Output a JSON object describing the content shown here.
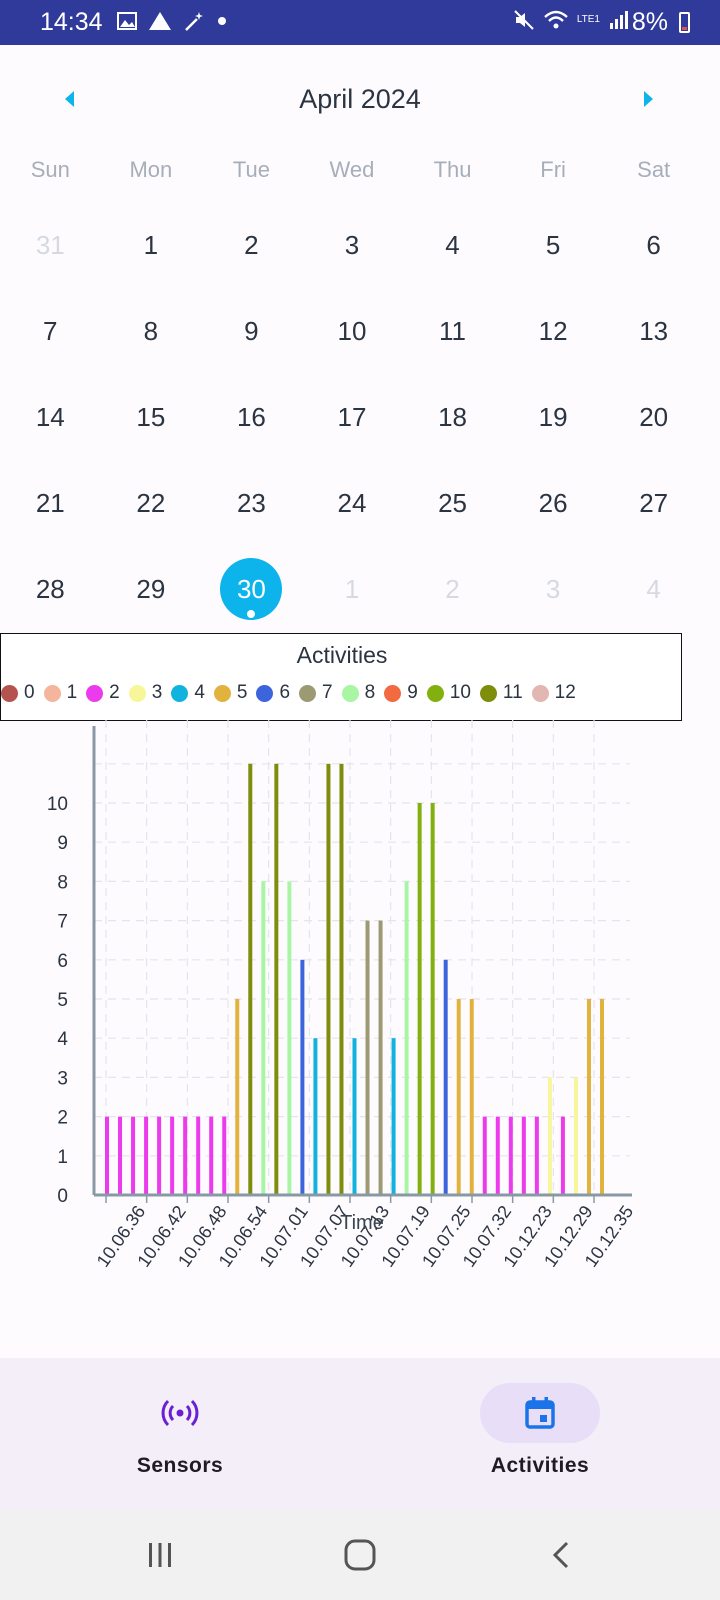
{
  "status_bar": {
    "time": "14:34",
    "battery": "8%",
    "network": "LTE1"
  },
  "calendar": {
    "month_title": "April 2024",
    "weekdays": [
      "Sun",
      "Mon",
      "Tue",
      "Wed",
      "Thu",
      "Fri",
      "Sat"
    ],
    "weeks": [
      [
        {
          "d": "31",
          "muted": true
        },
        {
          "d": "1"
        },
        {
          "d": "2"
        },
        {
          "d": "3"
        },
        {
          "d": "4"
        },
        {
          "d": "5"
        },
        {
          "d": "6"
        }
      ],
      [
        {
          "d": "7"
        },
        {
          "d": "8"
        },
        {
          "d": "9"
        },
        {
          "d": "10"
        },
        {
          "d": "11"
        },
        {
          "d": "12"
        },
        {
          "d": "13"
        }
      ],
      [
        {
          "d": "14"
        },
        {
          "d": "15"
        },
        {
          "d": "16"
        },
        {
          "d": "17"
        },
        {
          "d": "18"
        },
        {
          "d": "19"
        },
        {
          "d": "20"
        }
      ],
      [
        {
          "d": "21"
        },
        {
          "d": "22"
        },
        {
          "d": "23"
        },
        {
          "d": "24"
        },
        {
          "d": "25"
        },
        {
          "d": "26"
        },
        {
          "d": "27"
        }
      ],
      [
        {
          "d": "28"
        },
        {
          "d": "29"
        },
        {
          "d": "30",
          "selected": true
        },
        {
          "d": "1",
          "muted": true
        },
        {
          "d": "2",
          "muted": true
        },
        {
          "d": "3",
          "muted": true
        },
        {
          "d": "4",
          "muted": true
        }
      ]
    ],
    "accent_color": "#0db4ec"
  },
  "legend": {
    "title": "Activities",
    "items": [
      {
        "label": "0",
        "color": "#b5534f"
      },
      {
        "label": "1",
        "color": "#f5b59c"
      },
      {
        "label": "2",
        "color": "#ec3bec"
      },
      {
        "label": "3",
        "color": "#f7f79a"
      },
      {
        "label": "4",
        "color": "#11b2de"
      },
      {
        "label": "5",
        "color": "#e2b23e"
      },
      {
        "label": "6",
        "color": "#3c64dc"
      },
      {
        "label": "7",
        "color": "#9b9a72"
      },
      {
        "label": "8",
        "color": "#a8f5a4"
      },
      {
        "label": "9",
        "color": "#f26a3f"
      },
      {
        "label": "10",
        "color": "#82b10f"
      },
      {
        "label": "11",
        "color": "#7e8e0c"
      },
      {
        "label": "12",
        "color": "#e2b6b1"
      }
    ]
  },
  "chart_data": {
    "type": "bar",
    "xlabel": "Time",
    "ylabel": "",
    "ylim": [
      0,
      11
    ],
    "yticks": [
      0,
      1,
      2,
      3,
      4,
      5,
      6,
      7,
      8,
      9,
      10
    ],
    "grid": true,
    "xtick_labels": [
      "10.06.36",
      "10.06.42",
      "10.06.48",
      "10.06.54",
      "10.07.01",
      "10.07.07",
      "10.07.13",
      "10.07.19",
      "10.07.25",
      "10.07.32",
      "10.12.23",
      "10.12.29",
      "10.12.35"
    ],
    "bars": [
      {
        "v": 2,
        "activity": "2"
      },
      {
        "v": 2,
        "activity": "2"
      },
      {
        "v": 2,
        "activity": "2"
      },
      {
        "v": 2,
        "activity": "2"
      },
      {
        "v": 2,
        "activity": "2"
      },
      {
        "v": 2,
        "activity": "2"
      },
      {
        "v": 2,
        "activity": "2"
      },
      {
        "v": 2,
        "activity": "2"
      },
      {
        "v": 2,
        "activity": "2"
      },
      {
        "v": 2,
        "activity": "2"
      },
      {
        "v": 5,
        "activity": "5"
      },
      {
        "v": 11,
        "activity": "11"
      },
      {
        "v": 8,
        "activity": "8"
      },
      {
        "v": 11,
        "activity": "11"
      },
      {
        "v": 8,
        "activity": "8"
      },
      {
        "v": 6,
        "activity": "6"
      },
      {
        "v": 4,
        "activity": "4"
      },
      {
        "v": 11,
        "activity": "11"
      },
      {
        "v": 11,
        "activity": "11"
      },
      {
        "v": 4,
        "activity": "4"
      },
      {
        "v": 7,
        "activity": "7"
      },
      {
        "v": 7,
        "activity": "7"
      },
      {
        "v": 4,
        "activity": "4"
      },
      {
        "v": 8,
        "activity": "8"
      },
      {
        "v": 10,
        "activity": "10"
      },
      {
        "v": 10,
        "activity": "10"
      },
      {
        "v": 6,
        "activity": "6"
      },
      {
        "v": 5,
        "activity": "5"
      },
      {
        "v": 5,
        "activity": "5"
      },
      {
        "v": 2,
        "activity": "2"
      },
      {
        "v": 2,
        "activity": "2"
      },
      {
        "v": 2,
        "activity": "2"
      },
      {
        "v": 2,
        "activity": "2"
      },
      {
        "v": 2,
        "activity": "2"
      },
      {
        "v": 3,
        "activity": "3"
      },
      {
        "v": 2,
        "activity": "2"
      },
      {
        "v": 3,
        "activity": "3"
      },
      {
        "v": 5,
        "activity": "5"
      },
      {
        "v": 5,
        "activity": "5"
      }
    ]
  },
  "bottom_nav": {
    "items": [
      {
        "label": "Sensors",
        "icon": "sensors-icon",
        "active": false
      },
      {
        "label": "Activities",
        "icon": "calendar-icon",
        "active": true
      }
    ]
  },
  "system_nav": {
    "buttons": [
      "recents-icon",
      "home-icon",
      "back-icon"
    ]
  }
}
